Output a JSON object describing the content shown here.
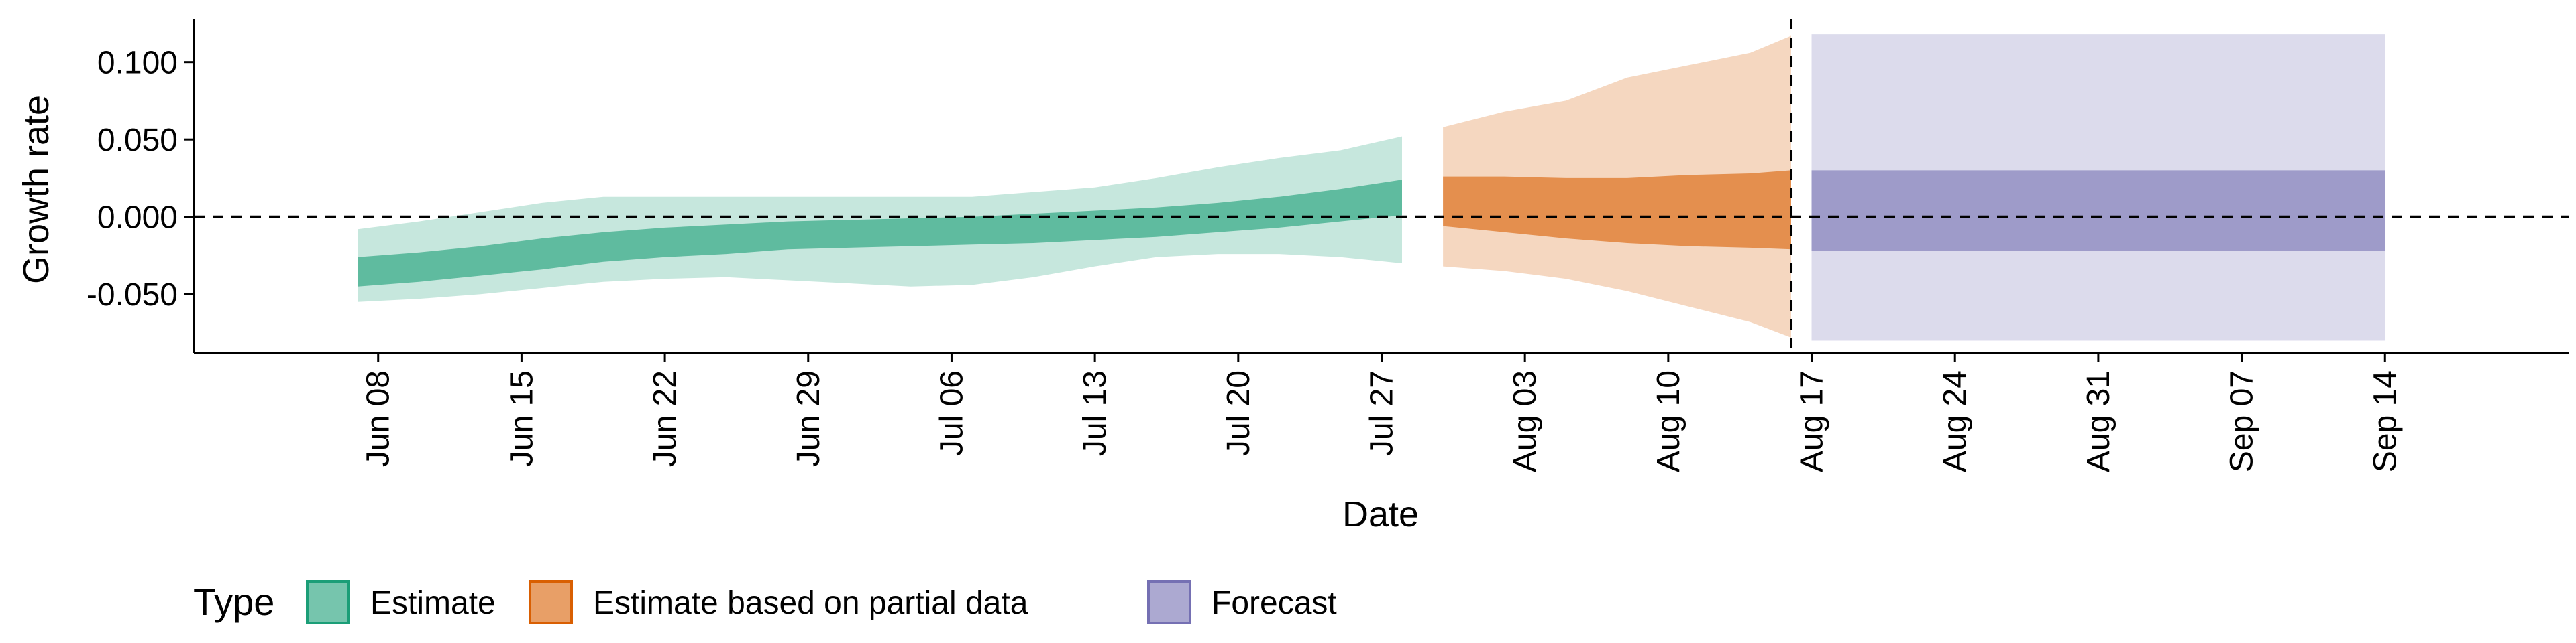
{
  "chart_data": {
    "type": "area",
    "xlabel": "Date",
    "ylabel": "Growth rate",
    "xlim": [
      "2020-05-30",
      "2020-09-23"
    ],
    "ylim": [
      -0.088,
      0.128
    ],
    "x_ticks": [
      "2020-06-08",
      "2020-06-15",
      "2020-06-22",
      "2020-06-29",
      "2020-07-06",
      "2020-07-13",
      "2020-07-20",
      "2020-07-27",
      "2020-08-03",
      "2020-08-10",
      "2020-08-17",
      "2020-08-24",
      "2020-08-31",
      "2020-09-07",
      "2020-09-14"
    ],
    "x_tick_labels": [
      "Jun 08",
      "Jun 15",
      "Jun 22",
      "Jun 29",
      "Jul 06",
      "Jul 13",
      "Jul 20",
      "Jul 27",
      "Aug 03",
      "Aug 10",
      "Aug 17",
      "Aug 24",
      "Aug 31",
      "Sep 07",
      "Sep 14"
    ],
    "y_ticks": [
      -0.05,
      0,
      0.05,
      0.1
    ],
    "y_tick_labels": [
      "-0.050",
      "0.000",
      "0.050",
      "0.100"
    ],
    "reference_lines": {
      "horizontal_y": 0,
      "vertical_x": "2020-08-16"
    },
    "legend": {
      "title": "Type",
      "position": "bottom",
      "entries": [
        "Estimate",
        "Estimate based on partial data",
        "Forecast"
      ]
    },
    "colors": {
      "Estimate": "#1b9e77",
      "Estimate based on partial data": "#d95f02",
      "Forecast": "#7570b3"
    },
    "series": [
      {
        "name": "Estimate",
        "x": [
          "2020-06-07",
          "2020-06-10",
          "2020-06-13",
          "2020-06-16",
          "2020-06-19",
          "2020-06-22",
          "2020-06-25",
          "2020-06-28",
          "2020-07-01",
          "2020-07-04",
          "2020-07-07",
          "2020-07-10",
          "2020-07-13",
          "2020-07-16",
          "2020-07-19",
          "2020-07-22",
          "2020-07-25",
          "2020-07-28"
        ],
        "outer_upper": [
          -0.008,
          -0.003,
          0.003,
          0.009,
          0.013,
          0.013,
          0.013,
          0.013,
          0.013,
          0.013,
          0.013,
          0.016,
          0.019,
          0.025,
          0.032,
          0.038,
          0.043,
          0.052
        ],
        "inner_upper": [
          -0.026,
          -0.023,
          -0.019,
          -0.014,
          -0.01,
          -0.007,
          -0.005,
          -0.003,
          -0.002,
          -0.001,
          0.0,
          0.002,
          0.004,
          0.006,
          0.009,
          0.013,
          0.018,
          0.024
        ],
        "inner_lower": [
          -0.045,
          -0.042,
          -0.038,
          -0.034,
          -0.029,
          -0.026,
          -0.024,
          -0.021,
          -0.02,
          -0.019,
          -0.018,
          -0.017,
          -0.015,
          -0.013,
          -0.01,
          -0.007,
          -0.003,
          0.001
        ],
        "outer_lower": [
          -0.055,
          -0.053,
          -0.05,
          -0.046,
          -0.042,
          -0.04,
          -0.039,
          -0.041,
          -0.043,
          -0.045,
          -0.044,
          -0.039,
          -0.032,
          -0.026,
          -0.024,
          -0.024,
          -0.026,
          -0.03
        ]
      },
      {
        "name": "Estimate based on partial data",
        "x": [
          "2020-07-30",
          "2020-08-02",
          "2020-08-05",
          "2020-08-08",
          "2020-08-11",
          "2020-08-14",
          "2020-08-16"
        ],
        "outer_upper": [
          0.058,
          0.068,
          0.075,
          0.09,
          0.098,
          0.106,
          0.117
        ],
        "inner_upper": [
          0.026,
          0.026,
          0.025,
          0.025,
          0.027,
          0.028,
          0.03
        ],
        "inner_lower": [
          -0.006,
          -0.01,
          -0.014,
          -0.017,
          -0.019,
          -0.02,
          -0.021
        ],
        "outer_lower": [
          -0.032,
          -0.035,
          -0.04,
          -0.048,
          -0.058,
          -0.068,
          -0.078
        ]
      },
      {
        "name": "Forecast",
        "x": [
          "2020-08-17",
          "2020-09-14"
        ],
        "outer_upper": [
          0.118,
          0.118
        ],
        "inner_upper": [
          0.03,
          0.03
        ],
        "inner_lower": [
          -0.022,
          -0.022
        ],
        "outer_lower": [
          -0.08,
          -0.08
        ]
      }
    ]
  }
}
